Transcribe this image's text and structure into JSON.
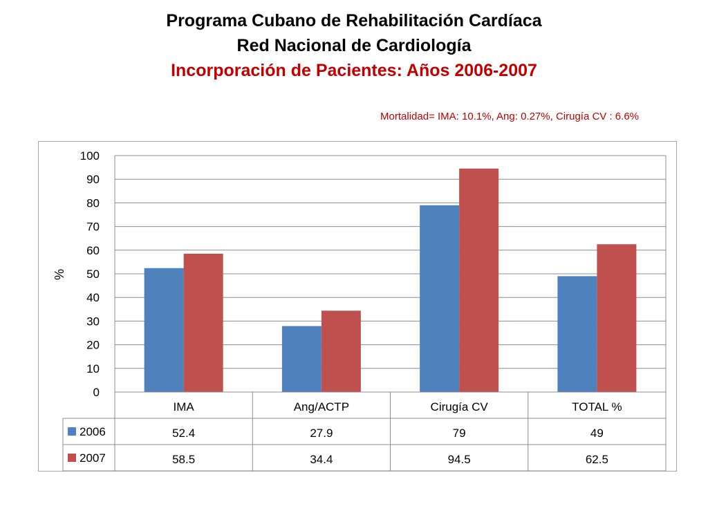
{
  "titles": {
    "line1": "Programa Cubano de Rehabilitación Cardíaca",
    "line2": "Red Nacional de Cardiología",
    "line3": "Incorporación de Pacientes: Años 2006-2007",
    "note": "Mortalidad= IMA: 10.1%, Ang: 0.27%, Cirugía CV : 6.6%"
  },
  "colors": {
    "series_2006": "#4f81bd",
    "series_2007": "#c0504d",
    "title_accent": "#c00000"
  },
  "chart_data": {
    "type": "bar",
    "title": "Incorporación de Pacientes: Años 2006-2007",
    "xlabel": "",
    "ylabel": "%",
    "ylim": [
      0,
      100
    ],
    "yticks": [
      0,
      10,
      20,
      30,
      40,
      50,
      60,
      70,
      80,
      90,
      100
    ],
    "grid": true,
    "legend": "data-table",
    "categories": [
      "IMA",
      "Ang/ACTP",
      "Cirugía CV",
      "TOTAL %"
    ],
    "series": [
      {
        "name": "2006",
        "values": [
          52.4,
          27.9,
          79,
          49
        ]
      },
      {
        "name": "2007",
        "values": [
          58.5,
          34.4,
          94.5,
          62.5
        ]
      }
    ],
    "table_labels": [
      [
        "52.4",
        "27.9",
        "79",
        "49"
      ],
      [
        "58.5",
        "34.4",
        "94.5",
        "62.5"
      ]
    ]
  }
}
